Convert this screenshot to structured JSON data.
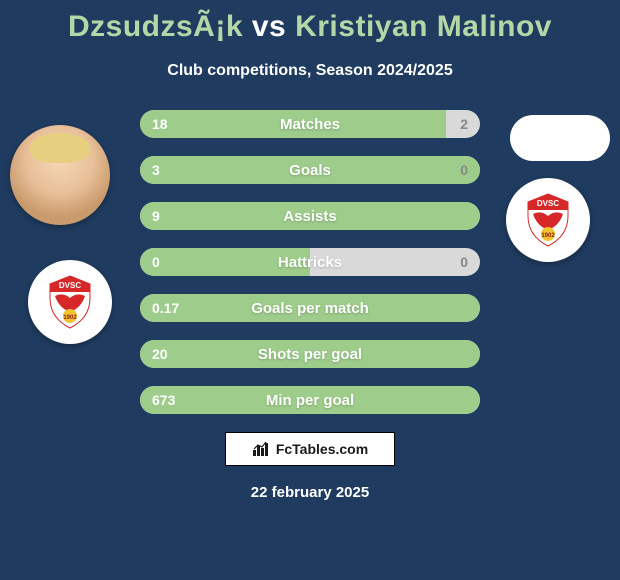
{
  "background_color": "#1f3b5f",
  "title": {
    "player1": "DzsudzsÃ¡k",
    "vs": "vs",
    "player2": "Kristiyan Malinov",
    "player_color": "#b4d7a7",
    "vs_color": "#ffffff",
    "fontsize": 30
  },
  "subtitle": {
    "text": "Club competitions, Season 2024/2025",
    "fontsize": 16
  },
  "stats": {
    "bar_bg_color": "#d9d9d9",
    "bar_left_color": "#9dcc8b",
    "label_color": "#ffffff",
    "val_left_color": "#ffffff",
    "val_right_color": "#888888",
    "rows": [
      {
        "label": "Matches",
        "left": "18",
        "right": "2",
        "left_pct": 90
      },
      {
        "label": "Goals",
        "left": "3",
        "right": "0",
        "left_pct": 100
      },
      {
        "label": "Assists",
        "left": "9",
        "right": "",
        "left_pct": 100
      },
      {
        "label": "Hattricks",
        "left": "0",
        "right": "0",
        "left_pct": 50
      },
      {
        "label": "Goals per match",
        "left": "0.17",
        "right": "",
        "left_pct": 100
      },
      {
        "label": "Shots per goal",
        "left": "20",
        "right": "",
        "left_pct": 100
      },
      {
        "label": "Min per goal",
        "left": "673",
        "right": "",
        "left_pct": 100
      }
    ]
  },
  "badge": {
    "top_text": "DVSC",
    "year": "1902",
    "top_color": "#d62828",
    "wing_color": "#d62828",
    "mid_color": "#ffffff",
    "year_bg": "#f4c430"
  },
  "attribution": {
    "brand": "FcTables.com",
    "icon_name": "chart-icon"
  },
  "date": {
    "text": "22 february 2025"
  }
}
